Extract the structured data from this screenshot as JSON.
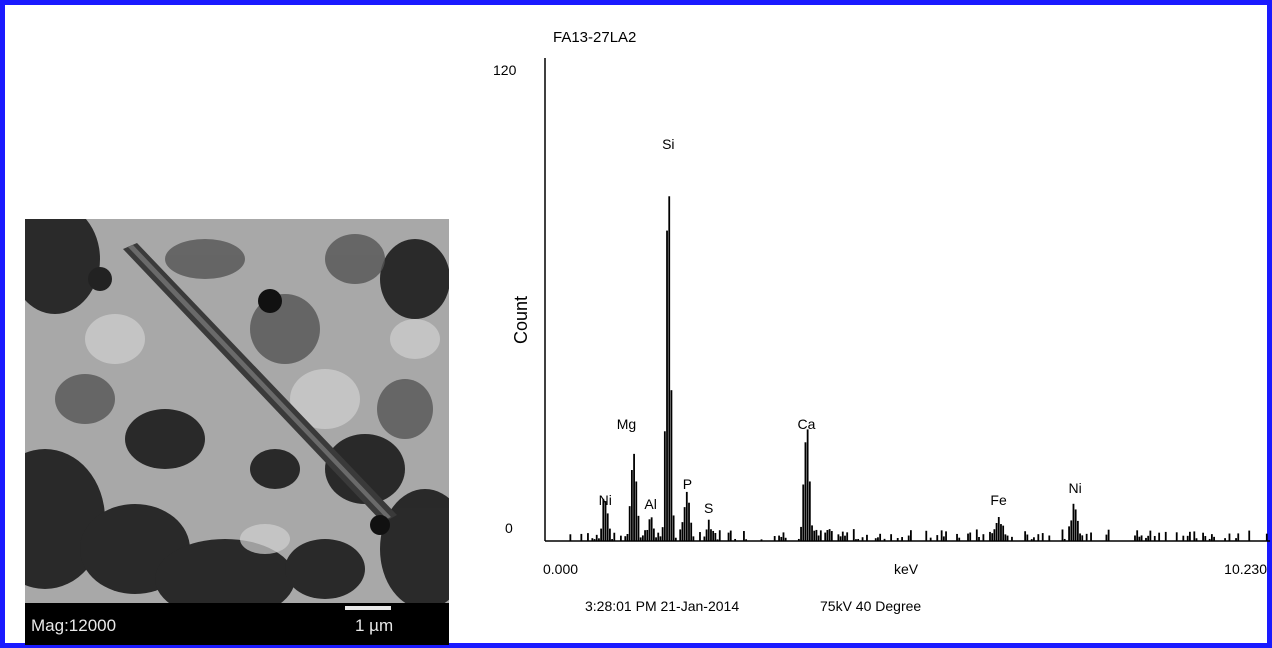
{
  "micrograph": {
    "magnification_label": "Mag:12000",
    "scale_bar_label": "1 µm"
  },
  "chart_data": {
    "type": "bar",
    "title": "FA13-27LA2",
    "xlabel": "keV",
    "ylabel": "Count",
    "xlim": [
      0.0,
      10.23
    ],
    "ylim": [
      0,
      120
    ],
    "x_tick_labels": [
      "0.000",
      "10.230"
    ],
    "y_tick_labels": [
      "0",
      "120"
    ],
    "footer_timestamp": "3:28:01 PM  21-Jan-2014",
    "footer_conditions": "75kV 40 Degree",
    "colors": {
      "bars": "#000000",
      "axes": "#000000",
      "frame": "#1a1aff"
    },
    "peaks": [
      {
        "label": "Ni",
        "x": 0.85,
        "y": 10
      },
      {
        "label": "Mg",
        "x": 1.25,
        "y": 22
      },
      {
        "label": "Al",
        "x": 1.49,
        "y": 6
      },
      {
        "label": "Si",
        "x": 1.74,
        "y": 92
      },
      {
        "label": "P",
        "x": 2.01,
        "y": 11
      },
      {
        "label": "S",
        "x": 2.31,
        "y": 4
      },
      {
        "label": "Ca",
        "x": 3.69,
        "y": 27
      },
      {
        "label": "Fe",
        "x": 6.4,
        "y": 6
      },
      {
        "label": "Ni",
        "x": 7.48,
        "y": 8
      }
    ],
    "peak_labels": [
      {
        "label": "Ni",
        "x": 0.85,
        "y": 9
      },
      {
        "label": "Mg",
        "x": 1.15,
        "y": 28
      },
      {
        "label": "Al",
        "x": 1.49,
        "y": 8
      },
      {
        "label": "Si",
        "x": 1.74,
        "y": 98
      },
      {
        "label": "P",
        "x": 2.01,
        "y": 13
      },
      {
        "label": "S",
        "x": 2.31,
        "y": 7
      },
      {
        "label": "Ca",
        "x": 3.69,
        "y": 28
      },
      {
        "label": "Fe",
        "x": 6.4,
        "y": 9
      },
      {
        "label": "Ni",
        "x": 7.48,
        "y": 12
      }
    ]
  }
}
